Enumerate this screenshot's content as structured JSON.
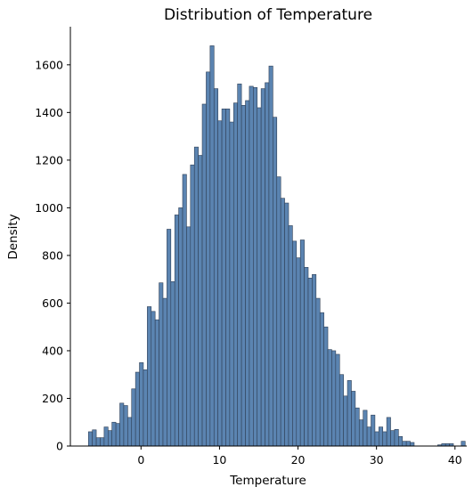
{
  "chart_data": {
    "type": "bar",
    "title": "Distribution of Temperature",
    "xlabel": "Temperature",
    "ylabel": "Density",
    "xlim": [
      -9,
      41.5
    ],
    "ylim": [
      0,
      1760
    ],
    "xticks": [
      0,
      10,
      20,
      30,
      40
    ],
    "yticks": [
      0,
      200,
      400,
      600,
      800,
      1000,
      1200,
      1400,
      1600
    ],
    "bin_start": -6.7,
    "bin_width": 0.5,
    "bar_color": "#5b84b1",
    "edge_color": "#2f3f55",
    "grid": false,
    "values": [
      60,
      68,
      35,
      35,
      80,
      65,
      100,
      95,
      180,
      170,
      120,
      240,
      310,
      350,
      320,
      585,
      565,
      530,
      685,
      620,
      910,
      690,
      970,
      1000,
      1140,
      920,
      1180,
      1255,
      1220,
      1435,
      1570,
      1680,
      1500,
      1365,
      1415,
      1415,
      1360,
      1440,
      1520,
      1430,
      1450,
      1510,
      1505,
      1420,
      1500,
      1525,
      1595,
      1380,
      1130,
      1040,
      1020,
      925,
      860,
      790,
      865,
      750,
      705,
      720,
      620,
      560,
      500,
      405,
      400,
      385,
      300,
      210,
      275,
      230,
      160,
      110,
      150,
      80,
      130,
      60,
      80,
      60,
      120,
      65,
      70,
      40,
      20,
      20,
      15,
      0,
      0,
      0,
      0,
      0,
      0,
      5,
      10,
      10,
      10,
      0,
      0,
      20
    ]
  }
}
